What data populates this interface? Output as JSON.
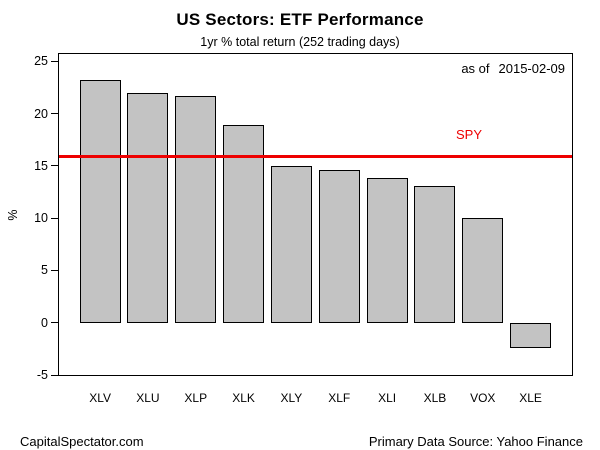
{
  "title": "US Sectors: ETF Performance",
  "subtitle": "1yr % total return (252 trading days)",
  "annotations": {
    "as_of_label": "as of",
    "as_of_date": "2015-02-09",
    "spy_label": "SPY"
  },
  "footer": {
    "left": "CapitalSpectator.com",
    "right": "Primary Data Source: Yahoo Finance"
  },
  "colors": {
    "background": "#ffffff",
    "bar_fill": "#c3c3c3",
    "bar_border": "#000000",
    "reference_line": "#ee0000",
    "spy_label_text": "#ee0000",
    "text": "#000000"
  },
  "chart_data": {
    "type": "bar",
    "title": "US Sectors: ETF Performance",
    "subtitle": "1yr % total return (252 trading days)",
    "categories": [
      "XLV",
      "XLU",
      "XLP",
      "XLK",
      "XLY",
      "XLF",
      "XLI",
      "XLB",
      "VOX",
      "XLE"
    ],
    "values": [
      23.2,
      22.0,
      21.7,
      18.9,
      15.0,
      14.6,
      13.8,
      13.1,
      10.0,
      -2.4
    ],
    "xlabel": "",
    "ylabel": "%",
    "yticks": [
      25,
      20,
      15,
      10,
      5,
      0,
      -5
    ],
    "ylim": [
      -5,
      25.7
    ],
    "grid": false,
    "legend": false,
    "reference_line": {
      "label": "SPY",
      "value": 15.9
    },
    "as_of": "2015-02-09"
  }
}
